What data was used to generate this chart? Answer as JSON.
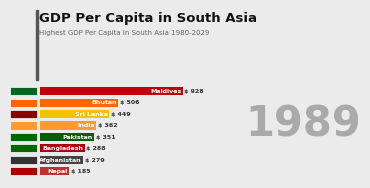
{
  "title": "GDP Per Capita in South Asia",
  "subtitle": "Highest GDP Per Capita in South Asia 1980-2029",
  "year": "1989",
  "background_color": "#ebebeb",
  "countries": [
    "Maldives",
    "Bhutan",
    "Sri Lanka",
    "India",
    "Pakistan",
    "Bangladesh",
    "Afghanistan",
    "Nepal"
  ],
  "values": [
    928,
    506,
    449,
    362,
    351,
    288,
    279,
    185
  ],
  "bar_colors": [
    "#c0000a",
    "#ff6600",
    "#f5c000",
    "#ff9933",
    "#0a5c0a",
    "#aa0010",
    "#444444",
    "#c03030"
  ],
  "flag_bg": [
    "#006622",
    "#ff6600",
    "#8B0000",
    "#ff9933",
    "#006600",
    "#006600",
    "#333333",
    "#aa0000"
  ],
  "max_value": 928,
  "title_fontsize": 9.5,
  "subtitle_fontsize": 5.0,
  "year_fontsize": 30,
  "bar_label_fontsize": 4.5,
  "value_label_fontsize": 4.5,
  "accent_color": "#555555",
  "year_color": "#aaaaaa",
  "title_color": "#111111",
  "subtitle_color": "#666666"
}
